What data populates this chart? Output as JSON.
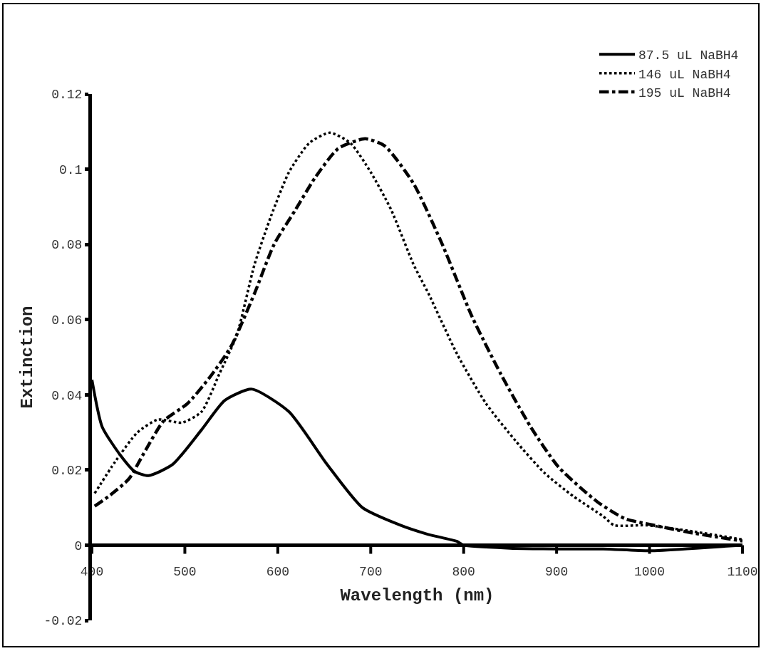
{
  "chart_data": {
    "type": "line",
    "xlabel": "Wavelength (nm)",
    "ylabel": "Extinction",
    "xlim": [
      400,
      1100
    ],
    "xticks": [
      400,
      500,
      600,
      700,
      800,
      900,
      1000,
      1100
    ],
    "ylim": [
      -0.02,
      0.12
    ],
    "yticks": [
      -0.02,
      0,
      0.02,
      0.04,
      0.06,
      0.08,
      0.1,
      0.12
    ],
    "grid": false,
    "legend": "top right",
    "series": [
      {
        "name": "87.5 uL NaBH4",
        "color": "#000000",
        "line_style": "solid",
        "x": [
          400,
          411,
          431,
          446,
          461,
          487,
          518,
          543,
          572,
          612,
          653,
          691,
          730,
          760,
          793,
          800,
          850,
          900,
          950,
          1000,
          1050,
          1100
        ],
        "values": [
          0.044,
          0.0315,
          0.0238,
          0.0196,
          0.0185,
          0.0215,
          0.0307,
          0.0385,
          0.0415,
          0.0355,
          0.0215,
          0.01,
          0.0055,
          0.003,
          0.001,
          0,
          -0.0008,
          -0.001,
          -0.001,
          -0.0015,
          -0.0008,
          0
        ]
      },
      {
        "name": "146 uL NaBH4",
        "color": "#000000",
        "line_style": "dotted",
        "x": [
          403,
          425,
          449,
          471,
          497,
          518,
          537,
          556,
          575,
          593,
          612,
          634,
          656,
          678,
          700,
          722,
          746,
          762,
          793,
          824,
          856,
          887,
          918,
          950,
          962,
          997,
          1043,
          1100
        ],
        "values": [
          0.0138,
          0.0222,
          0.03,
          0.0334,
          0.0326,
          0.0355,
          0.0455,
          0.056,
          0.0747,
          0.0877,
          0.0992,
          0.107,
          0.1097,
          0.107,
          0.0992,
          0.0892,
          0.0747,
          0.067,
          0.0508,
          0.0377,
          0.0277,
          0.0192,
          0.013,
          0.0077,
          0.0053,
          0.0053,
          0.0038,
          0.0015
        ]
      },
      {
        "name": "195 uL NaBH4",
        "color": "#000000",
        "line_style": "dashdot",
        "x": [
          403,
          418,
          440,
          456,
          477,
          503,
          527,
          550,
          575,
          596,
          619,
          640,
          665,
          694,
          715,
          746,
          777,
          809,
          840,
          872,
          902,
          944,
          974,
          997,
          1043,
          1100
        ],
        "values": [
          0.0104,
          0.013,
          0.0177,
          0.0245,
          0.033,
          0.0377,
          0.0447,
          0.053,
          0.067,
          0.08,
          0.0892,
          0.0977,
          0.1055,
          0.1081,
          0.1062,
          0.0962,
          0.08,
          0.0608,
          0.0455,
          0.0315,
          0.0208,
          0.0115,
          0.007,
          0.0057,
          0.0034,
          0.0011
        ]
      }
    ]
  }
}
